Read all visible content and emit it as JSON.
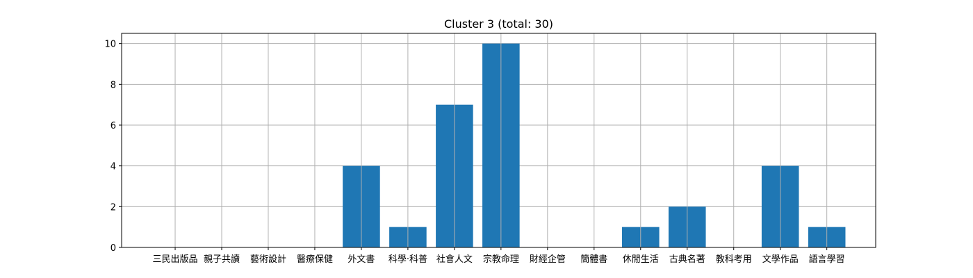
{
  "chart_data": {
    "type": "bar",
    "title": "Cluster 3 (total: 30)",
    "xlabel": "",
    "ylabel": "",
    "categories": [
      "三民出版品",
      "親子共讀",
      "藝術設計",
      "醫療保健",
      "外文書",
      "科學‧科普",
      "社會人文",
      "宗教命理",
      "財經企管",
      "簡體書",
      "休閒生活",
      "古典名著",
      "教科考用",
      "文學作品",
      "語言學習"
    ],
    "values": [
      0,
      0,
      0,
      0,
      4,
      1,
      7,
      10,
      0,
      0,
      1,
      2,
      0,
      4,
      1
    ],
    "ylim": [
      0,
      10.5
    ],
    "yticks": [
      0,
      2,
      4,
      6,
      8,
      10
    ],
    "grid": true,
    "bar_color": "#1f77b4",
    "grid_color": "#b0b0b0"
  }
}
